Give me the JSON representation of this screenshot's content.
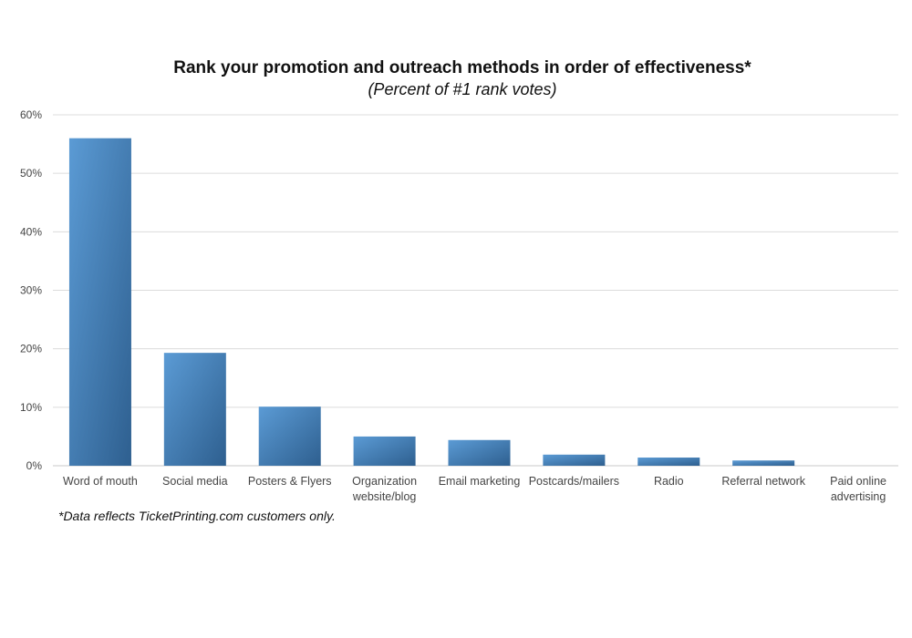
{
  "chart_data": {
    "type": "bar",
    "title": "Rank your promotion and outreach methods in order of effectiveness*",
    "subtitle": "(Percent of #1 rank votes)",
    "categories": [
      [
        "Word of mouth"
      ],
      [
        "Social media"
      ],
      [
        "Posters & Flyers"
      ],
      [
        "Organization",
        "website/blog"
      ],
      [
        "Email marketing"
      ],
      [
        "Postcards/mailers"
      ],
      [
        "Radio"
      ],
      [
        "Referral network"
      ],
      [
        "Paid online",
        "advertising"
      ]
    ],
    "values": [
      56,
      19.3,
      10.1,
      5,
      4.4,
      1.9,
      1.4,
      0.9,
      0
    ],
    "ylim": [
      0,
      60
    ],
    "yticks": [
      0,
      10,
      20,
      30,
      40,
      50,
      60
    ],
    "ytick_labels": [
      "0%",
      "10%",
      "20%",
      "30%",
      "40%",
      "50%",
      "60%"
    ],
    "grid": true,
    "colors": {
      "bar_light": "#5b9bd5",
      "bar_dark": "#2e5f8f",
      "grid": "#dcdcdc"
    },
    "footnote": "*Data reflects TicketPrinting.com customers only."
  }
}
